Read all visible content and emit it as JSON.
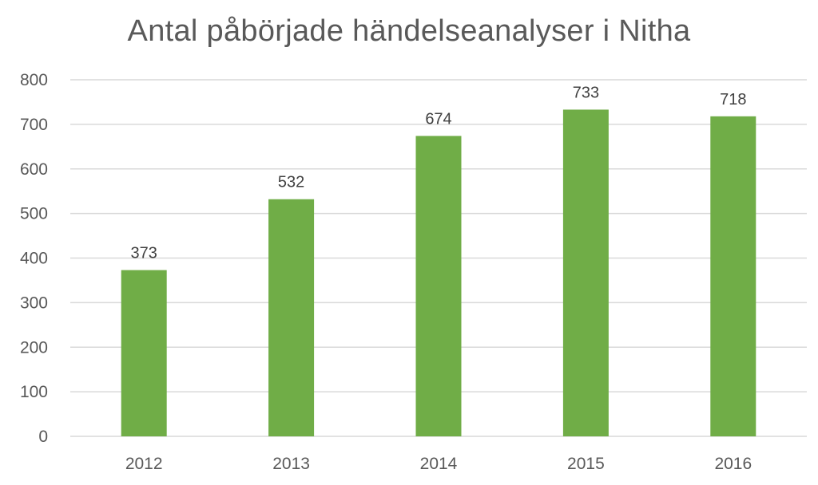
{
  "chart_data": {
    "type": "bar",
    "title": "Antal påbörjade händelseanalyser i Nitha",
    "xlabel": "",
    "ylabel": "",
    "categories": [
      "2012",
      "2013",
      "2014",
      "2015",
      "2016"
    ],
    "values": [
      373,
      532,
      674,
      733,
      718
    ],
    "data_labels": [
      "373",
      "532",
      "674",
      "733",
      "718"
    ],
    "ylim": [
      0,
      800
    ],
    "yticks": [
      0,
      100,
      200,
      300,
      400,
      500,
      600,
      700,
      800
    ],
    "ytick_labels": [
      "0",
      "100",
      "200",
      "300",
      "400",
      "500",
      "600",
      "700",
      "800"
    ],
    "grid": true,
    "legend": "none",
    "colors": {
      "bar": "#70ad47",
      "grid": "#d9d9d9",
      "text": "#595959"
    }
  }
}
